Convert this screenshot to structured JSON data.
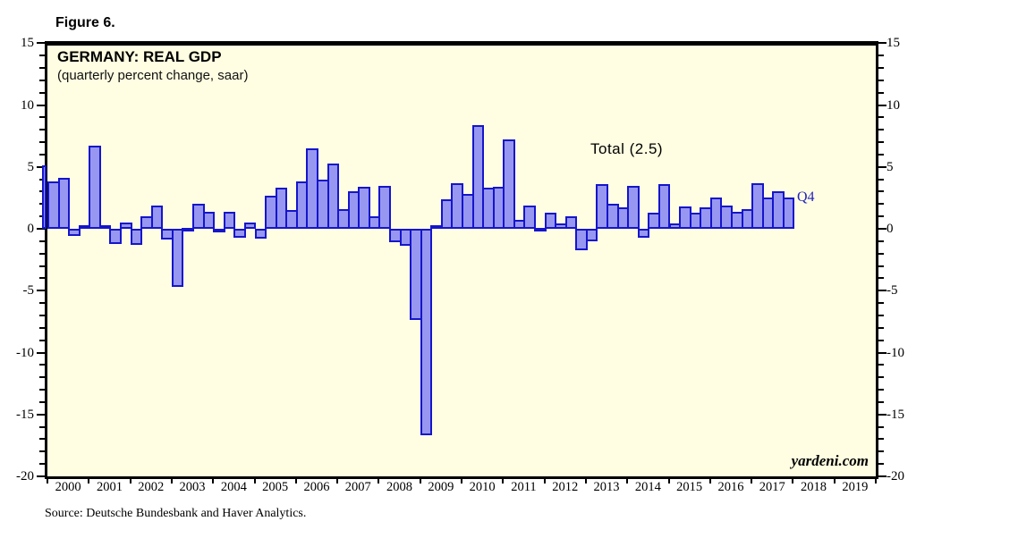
{
  "figure_label": "Figure 6.",
  "chart": {
    "title": "GERMANY: REAL GDP",
    "subtitle": "(quarterly percent change, saar)",
    "annotation_total": "Total (2.5)",
    "annotation_latest_quarter": "Q4",
    "watermark": "yardeni.com",
    "source": "Source: Deutsche Bundesbank and Haver Analytics."
  },
  "colors": {
    "plot_background": "#fffee2",
    "bar_fill": "#9797f2",
    "bar_outline": "#1515cc",
    "latest_quarter_label": "#2222bb",
    "axis": "#000000"
  },
  "chart_data": {
    "type": "bar",
    "title": "GERMANY: REAL GDP",
    "subtitle": "(quarterly percent change, saar)",
    "ylabel": "percent change, saar",
    "ylim": [
      -20,
      15
    ],
    "y_ticks": [
      15,
      10,
      5,
      0,
      -5,
      -10,
      -15,
      -20
    ],
    "y_minor_tick_interval": 1,
    "grid": false,
    "legend_position": "none",
    "x_axis_years": [
      "2000",
      "2001",
      "2002",
      "2003",
      "2004",
      "2005",
      "2006",
      "2007",
      "2008",
      "2009",
      "2010",
      "2011",
      "2012",
      "2013",
      "2014",
      "2015",
      "2016",
      "2017",
      "2018",
      "2019"
    ],
    "partial_bar_before_axis": {
      "quarter": "1999Q4",
      "value": 5.1
    },
    "quarters": [
      "2000Q1",
      "2000Q2",
      "2000Q3",
      "2000Q4",
      "2001Q1",
      "2001Q2",
      "2001Q3",
      "2001Q4",
      "2002Q1",
      "2002Q2",
      "2002Q3",
      "2002Q4",
      "2003Q1",
      "2003Q2",
      "2003Q3",
      "2003Q4",
      "2004Q1",
      "2004Q2",
      "2004Q3",
      "2004Q4",
      "2005Q1",
      "2005Q2",
      "2005Q3",
      "2005Q4",
      "2006Q1",
      "2006Q2",
      "2006Q3",
      "2006Q4",
      "2007Q1",
      "2007Q2",
      "2007Q3",
      "2007Q4",
      "2008Q1",
      "2008Q2",
      "2008Q3",
      "2008Q4",
      "2009Q1",
      "2009Q2",
      "2009Q3",
      "2009Q4",
      "2010Q1",
      "2010Q2",
      "2010Q3",
      "2010Q4",
      "2011Q1",
      "2011Q2",
      "2011Q3",
      "2011Q4",
      "2012Q1",
      "2012Q2",
      "2012Q3",
      "2012Q4",
      "2013Q1",
      "2013Q2",
      "2013Q3",
      "2013Q4",
      "2014Q1",
      "2014Q2",
      "2014Q3",
      "2014Q4",
      "2015Q1",
      "2015Q2",
      "2015Q3",
      "2015Q4",
      "2016Q1",
      "2016Q2",
      "2016Q3",
      "2016Q4",
      "2017Q1",
      "2017Q2",
      "2017Q3",
      "2017Q4"
    ],
    "values": [
      3.8,
      4.1,
      -0.6,
      0.3,
      6.7,
      0.3,
      -1.2,
      0.5,
      -1.3,
      1.0,
      1.9,
      -0.9,
      -4.7,
      0.1,
      2.0,
      1.4,
      -0.1,
      1.4,
      -0.7,
      0.5,
      -0.8,
      2.7,
      3.3,
      1.5,
      3.8,
      6.5,
      4.0,
      5.3,
      1.6,
      3.0,
      3.4,
      1.0,
      3.5,
      -1.1,
      -1.4,
      -7.4,
      -16.7,
      0.3,
      2.4,
      3.7,
      2.8,
      8.4,
      3.3,
      3.4,
      7.2,
      0.7,
      1.9,
      0.1,
      1.3,
      0.4,
      1.0,
      -1.7,
      -1.0,
      3.6,
      2.0,
      1.7,
      3.5,
      -0.7,
      1.3,
      3.6,
      0.4,
      1.8,
      1.3,
      1.7,
      2.5,
      1.9,
      1.4,
      1.6,
      3.7,
      2.5,
      3.0,
      2.5
    ],
    "latest_bar_annotation": {
      "quarter": "2017Q4",
      "label": "Q4",
      "value": 2.5
    },
    "total_annotation_value": 2.5
  }
}
